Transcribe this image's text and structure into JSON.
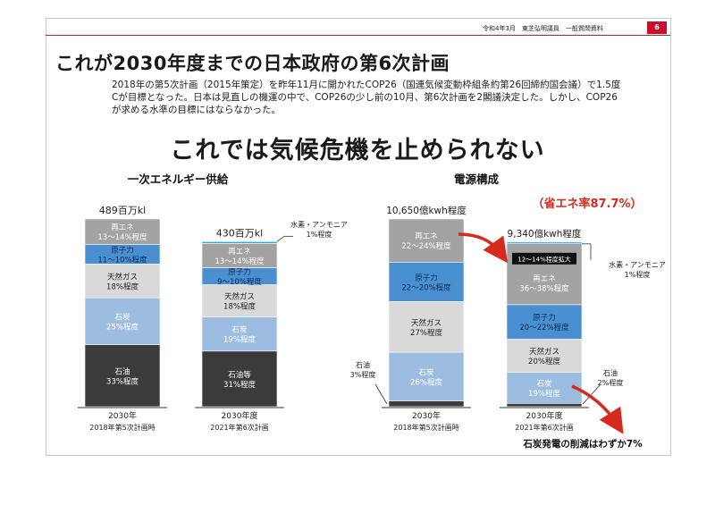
{
  "header": {
    "meta": "令和4年3月　東芝弘明議員　一般質問資料",
    "page_number": "6"
  },
  "title": "これが2030年度までの日本政府の第6次計画",
  "intro": "2018年の第5次計画（2015年策定）を昨年11月に開かれたCOP26（国連気候変動枠組条約第26回締約国会議）で1.5度Cが目標となった。日本は見直しの機運の中で、COP26の少し前の10月、第6次計画を2閣議決定した。しかし、COP26が求める水準の目標にはならなかった。",
  "headline": "これでは気候危機を止められない",
  "colors": {
    "accent_red": "#d62a1e",
    "badge_red": "#c8102e",
    "renewable": "#a3a3a3",
    "nuclear": "#4a8fd0",
    "gas": "#d9d9d9",
    "coal": "#9dbde0",
    "oil": "#3b3b3b",
    "hydrogen": "#29aae1"
  },
  "chart_data": [
    {
      "type": "bar",
      "stacked": true,
      "title": "一次エネルギー供給",
      "series_order": [
        "oil",
        "coal",
        "gas",
        "nuclear",
        "renewable"
      ],
      "bars": [
        {
          "total_label": "489百万kl",
          "total": 489,
          "xlabel": "2030年",
          "sublabel": "2018年第5次計画時",
          "segments": [
            {
              "key": "oil",
              "name": "石油",
              "label": "33%程度",
              "value": 33
            },
            {
              "key": "coal",
              "name": "石炭",
              "label": "25%程度",
              "value": 25
            },
            {
              "key": "gas",
              "name": "天然ガス",
              "label": "18%程度",
              "value": 18
            },
            {
              "key": "nuclear",
              "name": "原子力",
              "label": "11〜10%程度",
              "value": 10.5
            },
            {
              "key": "renewable",
              "name": "再エネ",
              "label": "13〜14%程度",
              "value": 13.5
            }
          ]
        },
        {
          "total_label": "430百万kl",
          "total": 430,
          "xlabel": "2030年度",
          "sublabel": "2021年第6次計画",
          "segments": [
            {
              "key": "oil",
              "name": "石油等",
              "label": "31%程度",
              "value": 31
            },
            {
              "key": "coal",
              "name": "石炭",
              "label": "19%程度",
              "value": 19
            },
            {
              "key": "gas",
              "name": "天然ガス",
              "label": "18%程度",
              "value": 18
            },
            {
              "key": "nuclear",
              "name": "原子力",
              "label": "9〜10%程度",
              "value": 9.5
            },
            {
              "key": "renewable",
              "name": "再エネ",
              "label": "13〜14%程度",
              "value": 13.5
            },
            {
              "key": "hydrogen",
              "name": "水素・アンモニア",
              "label": "1%程度",
              "value": 1
            }
          ],
          "callout": "水素・アンモニア\n1%程度"
        }
      ]
    },
    {
      "type": "bar",
      "stacked": true,
      "title": "電源構成",
      "annotation": "（省エネ率87.7%）",
      "bottom_note": "石炭発電の削減はわずか7%",
      "bars": [
        {
          "total_label": "10,650億kwh程度",
          "total": 10650,
          "xlabel": "2030年",
          "sublabel": "2018年第5次計画時",
          "segments": [
            {
              "key": "oil",
              "name": "石油",
              "label": "3%程度",
              "value": 3
            },
            {
              "key": "coal",
              "name": "石炭",
              "label": "26%程度",
              "value": 26
            },
            {
              "key": "gas",
              "name": "天然ガス",
              "label": "27%程度",
              "value": 27
            },
            {
              "key": "nuclear",
              "name": "原子力",
              "label": "22〜20%程度",
              "value": 21
            },
            {
              "key": "renewable",
              "name": "再エネ",
              "label": "22〜24%程度",
              "value": 23
            }
          ],
          "oil_callout": "石油\n3%程度"
        },
        {
          "total_label": "9,340億kwh程度",
          "total": 9340,
          "xlabel": "2030年度",
          "sublabel": "2021年第6次計画",
          "segments": [
            {
              "key": "oil",
              "name": "石油",
              "label": "2%程度",
              "value": 2
            },
            {
              "key": "coal",
              "name": "石炭",
              "label": "19%程度",
              "value": 19
            },
            {
              "key": "gas",
              "name": "天然ガス",
              "label": "20%程度",
              "value": 20
            },
            {
              "key": "nuclear",
              "name": "原子力",
              "label": "20〜22%程度",
              "value": 21
            },
            {
              "key": "renewable",
              "name": "再エネ",
              "label": "36〜38%程度",
              "value": 37
            },
            {
              "key": "hydrogen",
              "name": "水素・アンモニア",
              "label": "1%程度",
              "value": 1
            }
          ],
          "renewable_note": "12〜14%程度拡大",
          "callout": "水素・アンモニア\n1%程度",
          "oil_callout": "石油\n2%程度"
        }
      ]
    }
  ]
}
